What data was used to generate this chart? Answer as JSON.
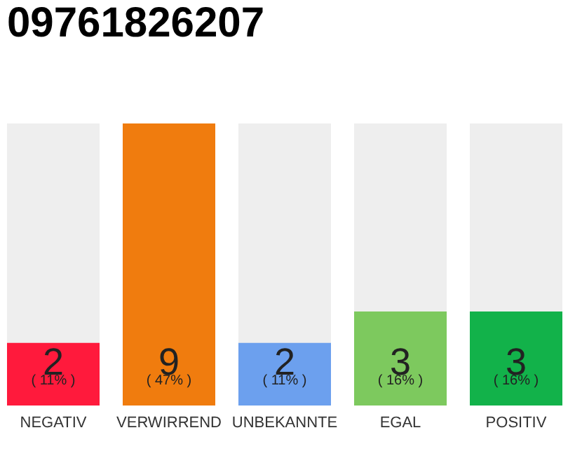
{
  "chart_data": {
    "type": "bar",
    "title": "09761826207",
    "categories": [
      "NEGATIV",
      "VERWIRREND",
      "UNBEKANNTE",
      "EGAL",
      "POSITIV"
    ],
    "values": [
      2,
      9,
      2,
      3,
      3
    ],
    "colors": [
      "#ff1a3c",
      "#f07c0e",
      "#6ca0ee",
      "#7dc95e",
      "#12b24a"
    ],
    "ylim": [
      0,
      9
    ],
    "tick_labels": "x",
    "data_labels": true,
    "legend": false,
    "annotations": [
      "( 11% )",
      "( 47% )",
      "( 11% )",
      "( 16% )",
      "( 16% )"
    ]
  }
}
